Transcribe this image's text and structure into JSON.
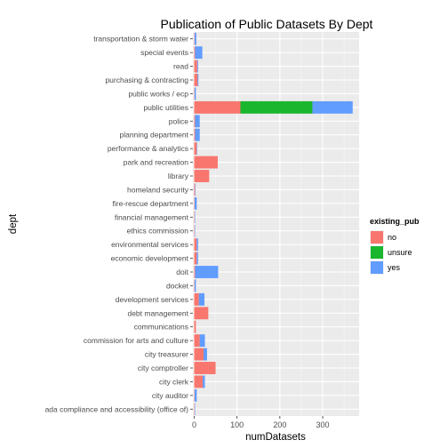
{
  "chart_data": {
    "type": "bar",
    "orientation": "horizontal",
    "stacked": true,
    "title": "Publication of Public Datasets By Dept",
    "xlabel": "numDatasets",
    "ylabel": "dept",
    "xlim": [
      -3,
      385
    ],
    "xticks": [
      0,
      100,
      200,
      300
    ],
    "grid": true,
    "legend": {
      "title": "existing_pub",
      "placement": "right",
      "entries": [
        "no",
        "unsure",
        "yes"
      ]
    },
    "colors": {
      "no": "#F8766D",
      "unsure": "#1AB62E",
      "yes": "#619CFF"
    },
    "categories": [
      "transportation & storm water",
      "special events",
      "read",
      "purchasing & contracting",
      "public works / ecp",
      "public utilities",
      "police",
      "planning department",
      "performance & analytics",
      "park and recreation",
      "library",
      "homeland security",
      "fire-rescue department",
      "financial management",
      "ethics commission",
      "environmental services",
      "economic development",
      "doit",
      "docket",
      "development services",
      "debt management",
      "communications",
      "commission for arts and culture",
      "city treasurer",
      "city comptroller",
      "city clerk",
      "city auditor",
      "ada compliance and accessibility (office of)"
    ],
    "series": [
      {
        "name": "no",
        "values": [
          1,
          2,
          7,
          8,
          1,
          108,
          2,
          2,
          6,
          55,
          35,
          2,
          1,
          1,
          1,
          6,
          6,
          2,
          1,
          11,
          33,
          4,
          13,
          22,
          50,
          20,
          1,
          1
        ]
      },
      {
        "name": "unsure",
        "values": [
          0,
          0,
          0,
          0,
          0,
          168,
          0,
          0,
          0,
          0,
          0,
          0,
          0,
          0,
          0,
          0,
          0,
          0,
          0,
          0,
          0,
          0,
          0,
          0,
          0,
          0,
          0,
          0
        ]
      },
      {
        "name": "yes",
        "values": [
          4,
          17,
          2,
          2,
          3,
          94,
          11,
          11,
          1,
          0,
          0,
          1,
          5,
          1,
          1,
          3,
          3,
          54,
          3,
          13,
          0,
          0,
          12,
          8,
          0,
          5,
          5,
          1
        ]
      }
    ]
  }
}
